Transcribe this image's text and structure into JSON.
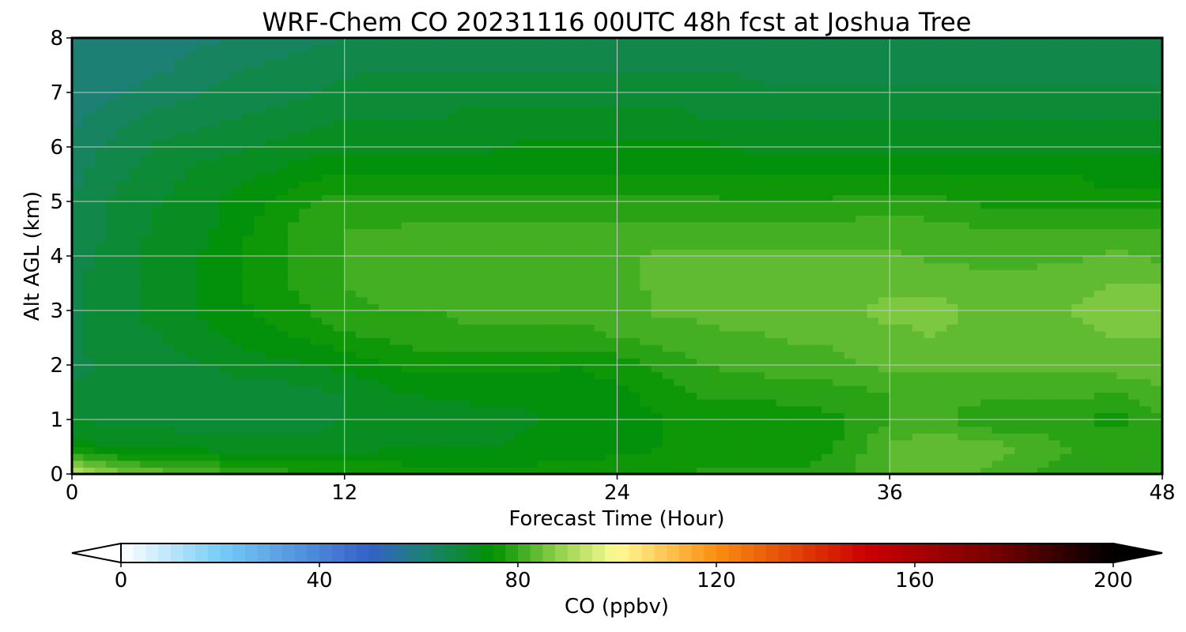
{
  "chart_data": {
    "type": "heatmap",
    "title": "WRF-Chem CO  20231116 00UTC 48h fcst at Joshua Tree",
    "xlabel": "Forecast Time (Hour)",
    "ylabel": "Alt AGL (km)",
    "xlim": [
      0,
      48
    ],
    "ylim": [
      0,
      8
    ],
    "x_ticks": [
      "0",
      "12",
      "24",
      "36",
      "48"
    ],
    "y_ticks": [
      "0",
      "1",
      "2",
      "3",
      "4",
      "5",
      "6",
      "7",
      "8"
    ],
    "grid": true,
    "x": [
      0,
      2,
      4,
      6,
      8,
      10,
      12,
      14,
      16,
      18,
      20,
      22,
      24,
      26,
      28,
      30,
      32,
      34,
      36,
      38,
      40,
      42,
      44,
      46,
      48
    ],
    "y": [
      0,
      0.5,
      1,
      1.5,
      2,
      2.5,
      3,
      3.5,
      4,
      4.5,
      5,
      5.5,
      6,
      6.5,
      7,
      7.5,
      8
    ],
    "z": [
      [
        94,
        86,
        84,
        82,
        80,
        78,
        78,
        77,
        76,
        76,
        76,
        76,
        77,
        77,
        78,
        78,
        78,
        79,
        83,
        85,
        82,
        80,
        79,
        80,
        79
      ],
      [
        74,
        72,
        72,
        71,
        71,
        71,
        71,
        72,
        72,
        72,
        73,
        74,
        74,
        75,
        75,
        75,
        76,
        78,
        83,
        85,
        84,
        82,
        80,
        80,
        80
      ],
      [
        70,
        69,
        69,
        69,
        69,
        69,
        70,
        71,
        71,
        72,
        72,
        73,
        74,
        75,
        76,
        76,
        76,
        77,
        80,
        81,
        78,
        78,
        78,
        76,
        80
      ],
      [
        68,
        68,
        69,
        69,
        69,
        69,
        70,
        72,
        73,
        73,
        73,
        74,
        74,
        76,
        78,
        78,
        79,
        79,
        80,
        81,
        81,
        81,
        81,
        80,
        82
      ],
      [
        67,
        68,
        69,
        70,
        71,
        72,
        73,
        75,
        76,
        76,
        76,
        75,
        76,
        78,
        80,
        81,
        81,
        82,
        83,
        83,
        83,
        83,
        83,
        84,
        84
      ],
      [
        67,
        69,
        70,
        72,
        74,
        75,
        77,
        78,
        79,
        79,
        79,
        79,
        80,
        81,
        82,
        82,
        83,
        83,
        84,
        85,
        84,
        84,
        84,
        85,
        85
      ],
      [
        67,
        69,
        71,
        73,
        75,
        77,
        79,
        80,
        80,
        81,
        81,
        81,
        81,
        83,
        83,
        84,
        84,
        84,
        86,
        86,
        84,
        84,
        85,
        86,
        86
      ],
      [
        67,
        69,
        71,
        73,
        76,
        78,
        80,
        81,
        81,
        81,
        81,
        82,
        82,
        83,
        83,
        83,
        84,
        83,
        84,
        84,
        83,
        83,
        84,
        85,
        85
      ],
      [
        66,
        69,
        71,
        73,
        76,
        78,
        80,
        81,
        81,
        81,
        81,
        81,
        82,
        83,
        83,
        83,
        83,
        83,
        83,
        82,
        82,
        82,
        82,
        83,
        82
      ],
      [
        66,
        68,
        71,
        72,
        75,
        78,
        80,
        80,
        81,
        81,
        81,
        81,
        81,
        81,
        81,
        81,
        81,
        81,
        81,
        81,
        80,
        80,
        80,
        80,
        80
      ],
      [
        65,
        68,
        70,
        72,
        74,
        77,
        79,
        78,
        78,
        78,
        78,
        78,
        78,
        78,
        78,
        77,
        77,
        78,
        79,
        78,
        77,
        77,
        76,
        76,
        76
      ],
      [
        64,
        67,
        69,
        71,
        72,
        74,
        75,
        75,
        75,
        75,
        75,
        75,
        75,
        75,
        75,
        75,
        75,
        75,
        75,
        75,
        75,
        75,
        75,
        74,
        74
      ],
      [
        63,
        66,
        68,
        69,
        70,
        71,
        72,
        72,
        72,
        72,
        73,
        73,
        73,
        73,
        73,
        72,
        72,
        72,
        72,
        72,
        72,
        72,
        72,
        72,
        72
      ],
      [
        62,
        64,
        66,
        67,
        68,
        69,
        70,
        70,
        70,
        71,
        71,
        71,
        71,
        71,
        70,
        70,
        70,
        70,
        70,
        70,
        70,
        70,
        70,
        70,
        70
      ],
      [
        61,
        62,
        64,
        65,
        66,
        67,
        68,
        69,
        69,
        69,
        69,
        69,
        69,
        69,
        69,
        68,
        68,
        68,
        68,
        68,
        68,
        68,
        68,
        68,
        68
      ],
      [
        60,
        61,
        62,
        64,
        65,
        66,
        67,
        67,
        67,
        67,
        67,
        67,
        67,
        67,
        67,
        67,
        66,
        66,
        66,
        66,
        66,
        66,
        66,
        66,
        66
      ],
      [
        60,
        60,
        61,
        62,
        63,
        64,
        65,
        65,
        65,
        65,
        65,
        65,
        65,
        65,
        65,
        65,
        65,
        65,
        65,
        65,
        65,
        65,
        65,
        65,
        65
      ]
    ],
    "colorbar": {
      "label": "CO  (ppbv)",
      "min": 0,
      "max": 200,
      "ticks": [
        "0",
        "40",
        "80",
        "120",
        "160",
        "200"
      ],
      "extend": "both",
      "color_stops": [
        {
          "v": 0,
          "c": "#ffffff"
        },
        {
          "v": 20,
          "c": "#76cdf7"
        },
        {
          "v": 50,
          "c": "#3560c8"
        },
        {
          "v": 60,
          "c": "#1e7f7e"
        },
        {
          "v": 75,
          "c": "#009100"
        },
        {
          "v": 88,
          "c": "#8fd04a"
        },
        {
          "v": 100,
          "c": "#fffb95"
        },
        {
          "v": 120,
          "c": "#fb8e10"
        },
        {
          "v": 150,
          "c": "#cc0000"
        },
        {
          "v": 175,
          "c": "#7a0000"
        },
        {
          "v": 200,
          "c": "#000000"
        }
      ],
      "under_color": "#ffffff",
      "over_color": "#000000"
    }
  }
}
